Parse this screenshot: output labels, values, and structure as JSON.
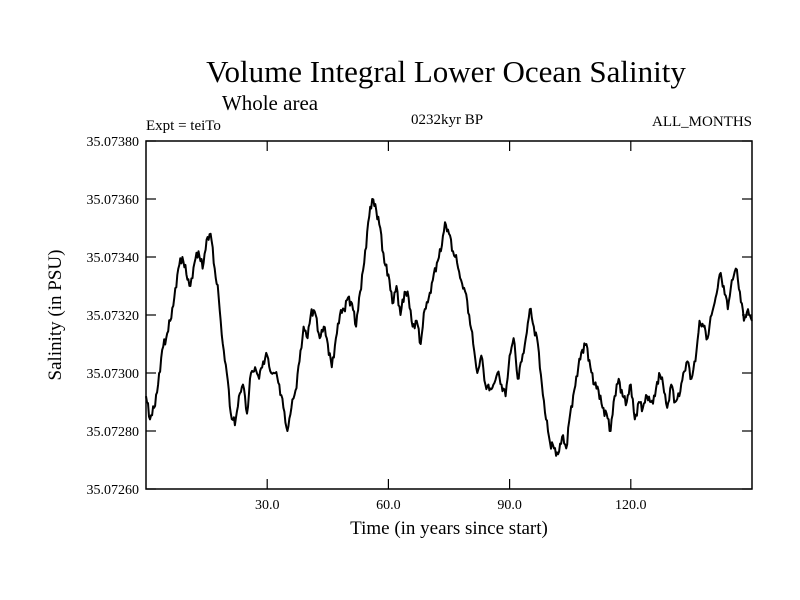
{
  "chart_data": {
    "type": "line",
    "title": "Volume Integral Lower Ocean Salinity",
    "subtitle": "Whole area",
    "experiment_label": "Expt = teiTo",
    "period_label": "0232kyr BP",
    "months_label": "ALL_MONTHS",
    "xlabel": "Time (in years since start)",
    "ylabel": "Salinity (in PSU)",
    "xlim": [
      0,
      150
    ],
    "ylim": [
      35.0726,
      35.0738
    ],
    "grid": false,
    "xticks": [
      {
        "value": 30,
        "label": "30.0"
      },
      {
        "value": 60,
        "label": "60.0"
      },
      {
        "value": 90,
        "label": "90.0"
      },
      {
        "value": 120,
        "label": "120.0"
      }
    ],
    "yticks": [
      {
        "value": 35.0726,
        "label": "35.07260"
      },
      {
        "value": 35.0728,
        "label": "35.07280"
      },
      {
        "value": 35.073,
        "label": "35.07300"
      },
      {
        "value": 35.0732,
        "label": "35.07320"
      },
      {
        "value": 35.0734,
        "label": "35.07340"
      },
      {
        "value": 35.0736,
        "label": "35.07360"
      },
      {
        "value": 35.0738,
        "label": "35.07380"
      }
    ],
    "series": [
      {
        "name": "salinity",
        "color": "#000000",
        "x": [
          0,
          1,
          2,
          3,
          4,
          5,
          6,
          7,
          8,
          9,
          10,
          11,
          12,
          13,
          14,
          15,
          16,
          17,
          18,
          19,
          20,
          21,
          22,
          23,
          24,
          25,
          26,
          27,
          28,
          29,
          30,
          31,
          32,
          33,
          34,
          35,
          36,
          37,
          38,
          39,
          40,
          41,
          42,
          43,
          44,
          45,
          46,
          47,
          48,
          49,
          50,
          51,
          52,
          53,
          54,
          55,
          56,
          57,
          58,
          59,
          60,
          61,
          62,
          63,
          64,
          65,
          66,
          67,
          68,
          69,
          70,
          71,
          72,
          73,
          74,
          75,
          76,
          77,
          78,
          79,
          80,
          81,
          82,
          83,
          84,
          85,
          86,
          87,
          88,
          89,
          90,
          91,
          92,
          93,
          94,
          95,
          96,
          97,
          98,
          99,
          100,
          101,
          102,
          103,
          104,
          105,
          106,
          107,
          108,
          109,
          110,
          111,
          112,
          113,
          114,
          115,
          116,
          117,
          118,
          119,
          120,
          121,
          122,
          123,
          124,
          125,
          126,
          127,
          128,
          129,
          130,
          131,
          132,
          133,
          134,
          135,
          136,
          137,
          138,
          139,
          140,
          141,
          142,
          143,
          144,
          145,
          146,
          147,
          148,
          149,
          150
        ],
        "y": [
          35.07292,
          35.07284,
          35.07288,
          35.07296,
          35.07308,
          35.07312,
          35.07318,
          35.07326,
          35.07336,
          35.0734,
          35.07334,
          35.0733,
          35.07338,
          35.07342,
          35.07336,
          35.07346,
          35.07348,
          35.07336,
          35.07326,
          35.0731,
          35.073,
          35.07286,
          35.07282,
          35.07292,
          35.07296,
          35.07286,
          35.073,
          35.07302,
          35.07298,
          35.07304,
          35.07306,
          35.073,
          35.073,
          35.07296,
          35.07288,
          35.0728,
          35.07288,
          35.07294,
          35.07304,
          35.07316,
          35.07312,
          35.07322,
          35.0732,
          35.07312,
          35.07316,
          35.0731,
          35.07302,
          35.07312,
          35.0732,
          35.07322,
          35.07326,
          35.07324,
          35.07316,
          35.07328,
          35.07338,
          35.07352,
          35.0736,
          35.07356,
          35.0735,
          35.07338,
          35.07334,
          35.07324,
          35.0733,
          35.0732,
          35.07328,
          35.07326,
          35.07316,
          35.07318,
          35.0731,
          35.07322,
          35.07326,
          35.07332,
          35.07338,
          35.07342,
          35.07352,
          35.07348,
          35.07342,
          35.07338,
          35.07332,
          35.07328,
          35.0732,
          35.0731,
          35.073,
          35.07306,
          35.07296,
          35.07294,
          35.07296,
          35.073,
          35.07296,
          35.07292,
          35.07306,
          35.07312,
          35.07298,
          35.07304,
          35.07312,
          35.07322,
          35.07316,
          35.0731,
          35.07296,
          35.07284,
          35.07276,
          35.07274,
          35.07272,
          35.07278,
          35.07274,
          35.07286,
          35.07294,
          35.07302,
          35.07308,
          35.0731,
          35.07302,
          35.07296,
          35.07294,
          35.07288,
          35.07286,
          35.0728,
          35.07292,
          35.07298,
          35.07292,
          35.0729,
          35.07296,
          35.07284,
          35.0729,
          35.07288,
          35.07292,
          35.0729,
          35.07292,
          35.073,
          35.07296,
          35.07288,
          35.07296,
          35.0729,
          35.07292,
          35.073,
          35.07304,
          35.07298,
          35.07304,
          35.07318,
          35.07316,
          35.07312,
          35.0732,
          35.07326,
          35.07334,
          35.0733,
          35.07322,
          35.07332,
          35.07336,
          35.07328,
          35.07318,
          35.07322,
          35.07318
        ]
      }
    ]
  }
}
